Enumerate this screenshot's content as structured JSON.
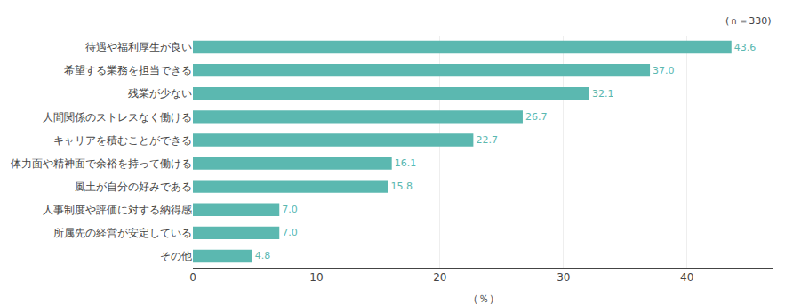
{
  "chart_data": {
    "type": "bar",
    "orientation": "horizontal",
    "categories": [
      "待遇や福利厚生が良い",
      "希望する業務を担当できる",
      "残業が少ない",
      "人間関係のストレスなく働ける",
      "キャリアを積むことができる",
      "体力面や精神面で余裕を持って働ける",
      "風土が自分の好みである",
      "人事制度や評価に対する納得感",
      "所属先の経営が安定している",
      "その他"
    ],
    "values": [
      43.6,
      37.0,
      32.1,
      26.7,
      22.7,
      16.1,
      15.8,
      7.0,
      7.0,
      4.8
    ],
    "value_labels": [
      "43.6",
      "37.0",
      "32.1",
      "26.7",
      "22.7",
      "16.1",
      "15.8",
      "7.0",
      "7.0",
      "4.8"
    ],
    "color": "#5bb8b0",
    "xlabel": "（％）",
    "annotation": "(ｎ＝330)",
    "xlim": [
      0,
      47
    ],
    "xticks": [
      0,
      10,
      20,
      30,
      40
    ],
    "grid": true,
    "data_labels": true
  }
}
